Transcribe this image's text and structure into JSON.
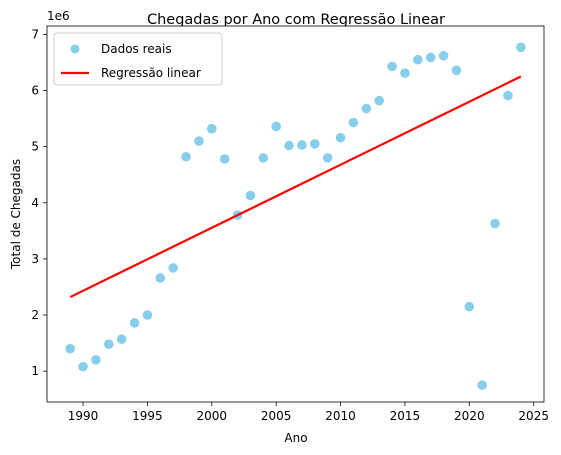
{
  "chart_data": {
    "type": "scatter",
    "title": "Chegadas por Ano com Regressão Linear",
    "xlabel": "Ano",
    "ylabel": "Total de Chegadas",
    "offset_label": "1e6",
    "xlim": [
      1987.2,
      2025.8
    ],
    "ylim": [
      0.45,
      7.15
    ],
    "xticks": [
      1990,
      1995,
      2000,
      2005,
      2010,
      2015,
      2020,
      2025
    ],
    "xtick_labels": [
      "1990",
      "1995",
      "2000",
      "2005",
      "2010",
      "2015",
      "2020",
      "2025"
    ],
    "yticks": [
      1,
      2,
      3,
      4,
      5,
      6,
      7
    ],
    "ytick_labels": [
      "1",
      "2",
      "3",
      "4",
      "5",
      "6",
      "7"
    ],
    "grid": false,
    "legend_position": "top-left",
    "series": [
      {
        "name": "Dados reais",
        "kind": "scatter",
        "color": "#87ceeb",
        "points": [
          {
            "x": 1989,
            "y": 1.4
          },
          {
            "x": 1990,
            "y": 1.08
          },
          {
            "x": 1991,
            "y": 1.2
          },
          {
            "x": 1992,
            "y": 1.48
          },
          {
            "x": 1993,
            "y": 1.57
          },
          {
            "x": 1994,
            "y": 1.86
          },
          {
            "x": 1995,
            "y": 2.0
          },
          {
            "x": 1996,
            "y": 2.66
          },
          {
            "x": 1997,
            "y": 2.84
          },
          {
            "x": 1998,
            "y": 4.82
          },
          {
            "x": 1999,
            "y": 5.1
          },
          {
            "x": 2000,
            "y": 5.32
          },
          {
            "x": 2001,
            "y": 4.78
          },
          {
            "x": 2002,
            "y": 3.78
          },
          {
            "x": 2003,
            "y": 4.13
          },
          {
            "x": 2004,
            "y": 4.8
          },
          {
            "x": 2005,
            "y": 5.36
          },
          {
            "x": 2006,
            "y": 5.02
          },
          {
            "x": 2007,
            "y": 5.03
          },
          {
            "x": 2008,
            "y": 5.05
          },
          {
            "x": 2009,
            "y": 4.8
          },
          {
            "x": 2010,
            "y": 5.16
          },
          {
            "x": 2011,
            "y": 5.43
          },
          {
            "x": 2012,
            "y": 5.68
          },
          {
            "x": 2013,
            "y": 5.82
          },
          {
            "x": 2014,
            "y": 6.43
          },
          {
            "x": 2015,
            "y": 6.31
          },
          {
            "x": 2016,
            "y": 6.55
          },
          {
            "x": 2017,
            "y": 6.59
          },
          {
            "x": 2018,
            "y": 6.62
          },
          {
            "x": 2019,
            "y": 6.36
          },
          {
            "x": 2020,
            "y": 2.15
          },
          {
            "x": 2021,
            "y": 0.75
          },
          {
            "x": 2022,
            "y": 3.63
          },
          {
            "x": 2023,
            "y": 5.91
          },
          {
            "x": 2024,
            "y": 6.77
          }
        ]
      },
      {
        "name": "Regressão linear",
        "kind": "line",
        "color": "#ff0000",
        "points": [
          {
            "x": 1989,
            "y": 2.32
          },
          {
            "x": 2024,
            "y": 6.25
          }
        ]
      }
    ]
  }
}
